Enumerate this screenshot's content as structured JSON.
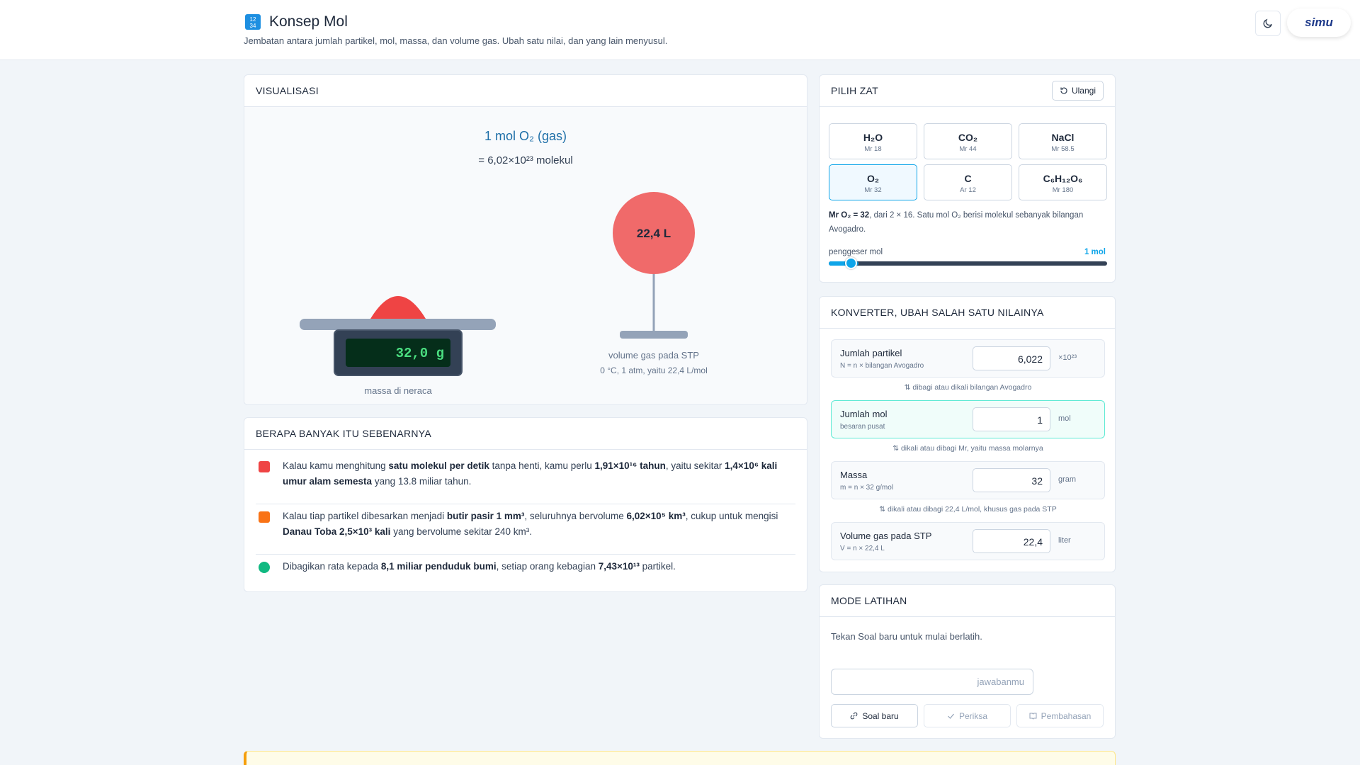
{
  "header": {
    "title": "Konsep Mol",
    "subtitle": "Jembatan antara jumlah partikel, mol, massa, dan volume gas. Ubah satu nilai, dan yang lain menyusul.",
    "logo": "simu"
  },
  "visualization": {
    "heading": "VISUALISASI",
    "amount": "1 mol O₂ (gas)",
    "molecules": "= 6,02×10²³ molekul",
    "scale_reading": "32,0 g",
    "scale_label": "massa di neraca",
    "volume_reading": "22,4 L",
    "volume_label": "volume gas pada STP",
    "volume_note": "0 °C, 1 atm, yaitu 22,4 L/mol"
  },
  "facts": {
    "heading": "BERAPA BANYAK ITU SEBENARNYA",
    "items": [
      [
        {
          "text": "Kalau kamu menghitung "
        },
        {
          "text": "satu molekul per detik",
          "bold": true
        },
        {
          "text": " tanpa henti, kamu perlu "
        },
        {
          "text": "1,91×10¹⁶ tahun",
          "bold": true
        },
        {
          "text": ", yaitu sekitar "
        },
        {
          "text": "1,4×10⁶ kali umur alam semesta",
          "bold": true
        },
        {
          "text": " yang 13.8 miliar tahun."
        }
      ],
      [
        {
          "text": "Kalau tiap partikel dibesarkan menjadi "
        },
        {
          "text": "butir pasir 1 mm³",
          "bold": true
        },
        {
          "text": ", seluruhnya bervolume "
        },
        {
          "text": "6,02×10⁵ km³",
          "bold": true
        },
        {
          "text": ", cukup untuk mengisi "
        },
        {
          "text": "Danau Toba 2,5×10³ kali",
          "bold": true
        },
        {
          "text": " yang bervolume sekitar 240 km³."
        }
      ],
      [
        {
          "text": "Dibagikan rata kepada "
        },
        {
          "text": "8,1 miliar penduduk bumi",
          "bold": true
        },
        {
          "text": ", setiap orang kebagian "
        },
        {
          "text": "7,43×10¹³",
          "bold": true
        },
        {
          "text": " partikel."
        }
      ]
    ]
  },
  "substances": {
    "heading": "PILIH ZAT",
    "reset": "Ulangi",
    "options": [
      {
        "formula": "H₂O",
        "mass": "Mr 18",
        "selected": false
      },
      {
        "formula": "CO₂",
        "mass": "Mr 44",
        "selected": false
      },
      {
        "formula": "NaCl",
        "mass": "Mr 58.5",
        "selected": false
      },
      {
        "formula": "O₂",
        "mass": "Mr 32",
        "selected": true
      },
      {
        "formula": "C",
        "mass": "Ar 12",
        "selected": false
      },
      {
        "formula": "C₆H₁₂O₆",
        "mass": "Mr 180",
        "selected": false
      }
    ],
    "description": [
      {
        "text": "Mr O₂ = 32",
        "bold": true
      },
      {
        "text": ", dari 2 × 16. Satu mol O₂ berisi molekul sebanyak bilangan Avogadro."
      }
    ],
    "slider_label": "penggeser mol",
    "slider_value": "1 mol"
  },
  "converter": {
    "heading": "KONVERTER, UBAH SALAH SATU NILAINYA",
    "rows": [
      {
        "label": "Jumlah partikel",
        "hint": "N = n × bilangan Avogadro",
        "value": "6,022",
        "unit": "×10²³",
        "active": false
      },
      {
        "label": "Jumlah mol",
        "hint": "besaran pusat",
        "value": "1",
        "unit": "mol",
        "active": true
      },
      {
        "label": "Massa",
        "hint": "m = n × 32 g/mol",
        "value": "32",
        "unit": "gram",
        "active": false
      },
      {
        "label": "Volume gas pada STP",
        "hint": "V = n × 22,4 L",
        "value": "22,4",
        "unit": "liter",
        "active": false
      }
    ],
    "links": [
      "dibagi atau dikali bilangan Avogadro",
      "dikali atau dibagi Mr, yaitu massa molarnya",
      "dikali atau dibagi 22,4 L/mol, khusus gas pada STP"
    ]
  },
  "practice": {
    "heading": "MODE LATIHAN",
    "prompt": "Tekan Soal baru untuk mulai berlatih.",
    "placeholder": "jawabanmu",
    "buttons": [
      "Soal baru",
      "Periksa",
      "Pembahasan"
    ]
  }
}
